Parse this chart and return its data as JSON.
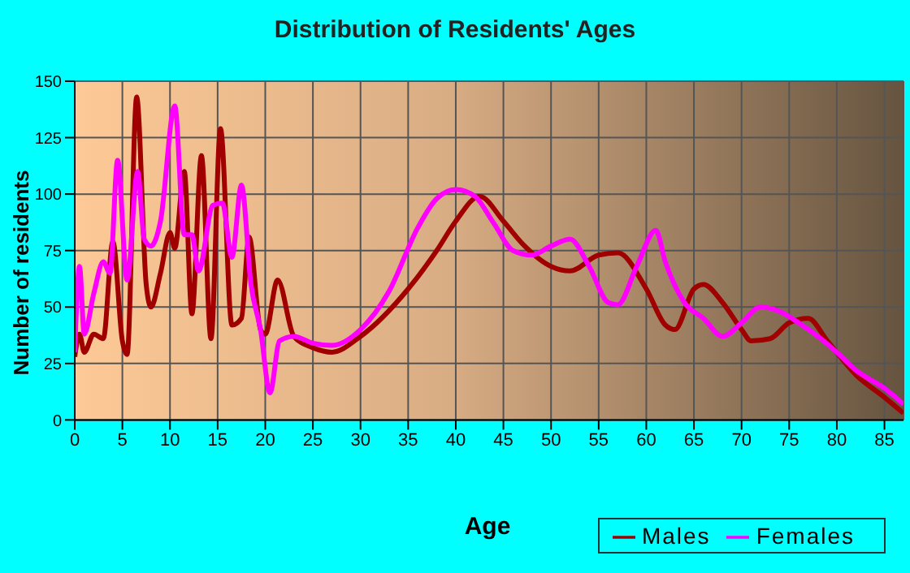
{
  "chart_data": {
    "type": "line",
    "title": "Distribution of Residents' Ages",
    "xlabel": "Age",
    "ylabel": "Number of residents",
    "xlim": [
      0,
      87
    ],
    "xticks": [
      0,
      5,
      10,
      15,
      20,
      25,
      30,
      35,
      40,
      45,
      50,
      55,
      60,
      65,
      70,
      75,
      80,
      85
    ],
    "ylim": [
      0,
      150
    ],
    "yticks": [
      0,
      25,
      50,
      75,
      100,
      125,
      150
    ],
    "grid": true,
    "legend": "bottom right",
    "marker": "none",
    "line_style": "solid",
    "series": [
      {
        "name": "Males",
        "color": "#a00000",
        "x": [
          0,
          0.5,
          1,
          2,
          3,
          4,
          5,
          5.5,
          6.5,
          7.5,
          8,
          9,
          10,
          10.5,
          11.5,
          12.3,
          13.3,
          14.3,
          15.3,
          16.5,
          17.5,
          18.3,
          19.5,
          20,
          21.3,
          23,
          25,
          27,
          30,
          35,
          38,
          40,
          42.5,
          45,
          47,
          50,
          52,
          55,
          57,
          60,
          62,
          63,
          65,
          66,
          68,
          70,
          71,
          73,
          75,
          77,
          79,
          82,
          85,
          87
        ],
        "values": [
          28,
          38,
          30,
          38,
          36,
          79,
          35,
          29,
          143,
          60,
          50,
          65,
          83,
          76,
          110,
          47,
          117,
          36,
          129,
          42,
          45,
          81,
          40,
          38,
          62,
          37,
          32,
          30,
          37,
          58,
          75,
          88,
          99,
          88,
          78,
          68,
          66,
          73,
          74,
          58,
          42,
          40,
          58,
          60,
          52,
          40,
          35,
          36,
          43,
          45,
          35,
          20,
          10,
          3
        ]
      },
      {
        "name": "Females",
        "color": "#ff00ff",
        "x": [
          0,
          0.5,
          1,
          2,
          3,
          3.7,
          4.5,
          5.5,
          6.6,
          7.3,
          8,
          9,
          10.5,
          11.5,
          12.3,
          13,
          14.5,
          15.5,
          16.5,
          17.5,
          18.5,
          19.5,
          20.5,
          21.5,
          23,
          25,
          27,
          30,
          33,
          36,
          38,
          40,
          42,
          44,
          46,
          48,
          50,
          52,
          54,
          56,
          57,
          59,
          61,
          62,
          64,
          66,
          68,
          70,
          72,
          74,
          76,
          78,
          80,
          82,
          85,
          87
        ],
        "values": [
          30,
          68,
          38,
          56,
          70,
          65,
          115,
          62,
          110,
          80,
          77,
          88,
          139,
          82,
          82,
          66,
          95,
          96,
          72,
          104,
          60,
          40,
          12,
          35,
          37,
          34,
          33,
          40,
          57,
          85,
          98,
          102,
          99,
          87,
          75,
          73,
          77,
          80,
          68,
          52,
          51,
          68,
          84,
          70,
          52,
          45,
          37,
          43,
          50,
          48,
          43,
          37,
          30,
          22,
          14,
          7
        ]
      }
    ]
  }
}
